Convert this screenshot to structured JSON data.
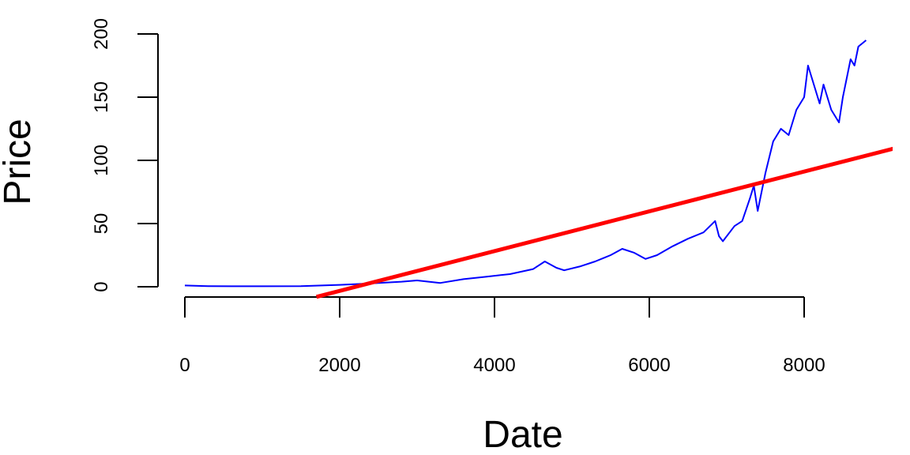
{
  "chart_data": {
    "type": "line",
    "xlabel": "Date",
    "ylabel": "Price",
    "xlim": [
      0,
      9200
    ],
    "ylim": [
      -8,
      200
    ],
    "x_ticks": [
      0,
      2000,
      4000,
      6000,
      8000
    ],
    "y_ticks": [
      0,
      50,
      100,
      150,
      200
    ],
    "x_tick_labels": [
      "0",
      "2000",
      "4000",
      "6000",
      "8000"
    ],
    "y_tick_labels": [
      "0",
      "50",
      "100",
      "150",
      "200"
    ],
    "grid": false,
    "legend": "none",
    "series": [
      {
        "color": "#0000ff",
        "style": "thin-line",
        "x": [
          0,
          300,
          600,
          1000,
          1500,
          2000,
          2200,
          2500,
          2800,
          3000,
          3300,
          3600,
          3900,
          4200,
          4500,
          4650,
          4800,
          4900,
          5100,
          5300,
          5500,
          5650,
          5800,
          5950,
          6100,
          6300,
          6500,
          6700,
          6850,
          6900,
          6950,
          7100,
          7200,
          7300,
          7350,
          7400,
          7450,
          7500,
          7600,
          7700,
          7800,
          7900,
          8000,
          8050,
          8100,
          8200,
          8250,
          8350,
          8450,
          8500,
          8600,
          8650,
          8700,
          8800
        ],
        "y": [
          1,
          0.5,
          0.4,
          0.4,
          0.5,
          1.5,
          2,
          3,
          4,
          5,
          3,
          6,
          8,
          10,
          14,
          20,
          15,
          13,
          16,
          20,
          25,
          30,
          27,
          22,
          25,
          32,
          38,
          43,
          52,
          40,
          36,
          48,
          52,
          70,
          80,
          60,
          75,
          90,
          115,
          125,
          120,
          140,
          150,
          175,
          165,
          145,
          160,
          140,
          130,
          150,
          180,
          175,
          190,
          195
        ]
      },
      {
        "color": "#ff0000",
        "style": "thick-line",
        "x": [
          1700,
          9200
        ],
        "y": [
          -8,
          110
        ]
      }
    ]
  }
}
